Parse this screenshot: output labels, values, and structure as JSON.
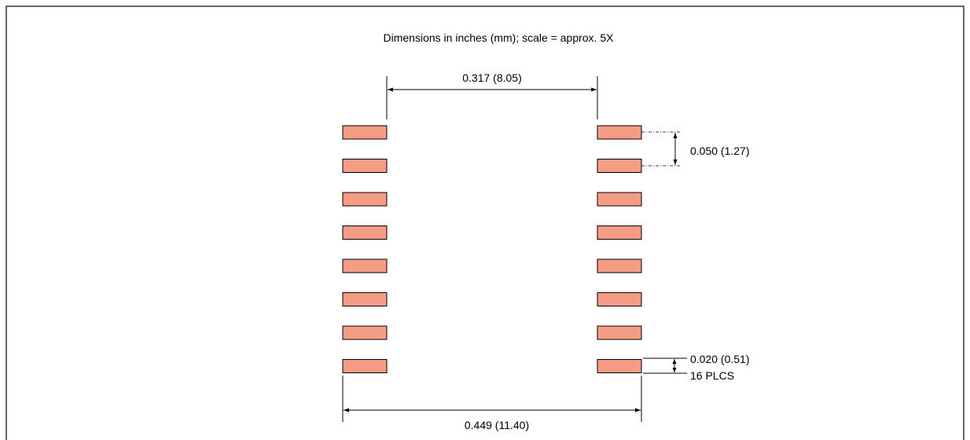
{
  "diagram": {
    "caption": "Dimensions in inches (mm); scale = approx. 5X",
    "row_pitch_label": "0.050 (1.27)",
    "pad_width_label": "0.020 (0.51)",
    "pad_count_label": "16 PLCS",
    "inner_span_label": "0.317 (8.05)",
    "outer_span_label": "0.449 (11.40)",
    "pad_rows": 8,
    "pads_per_side": 8,
    "total_pads": 16,
    "colors": {
      "pad_fill": "#F59C84",
      "line": "#000000",
      "background": "#FFFFFF"
    }
  }
}
